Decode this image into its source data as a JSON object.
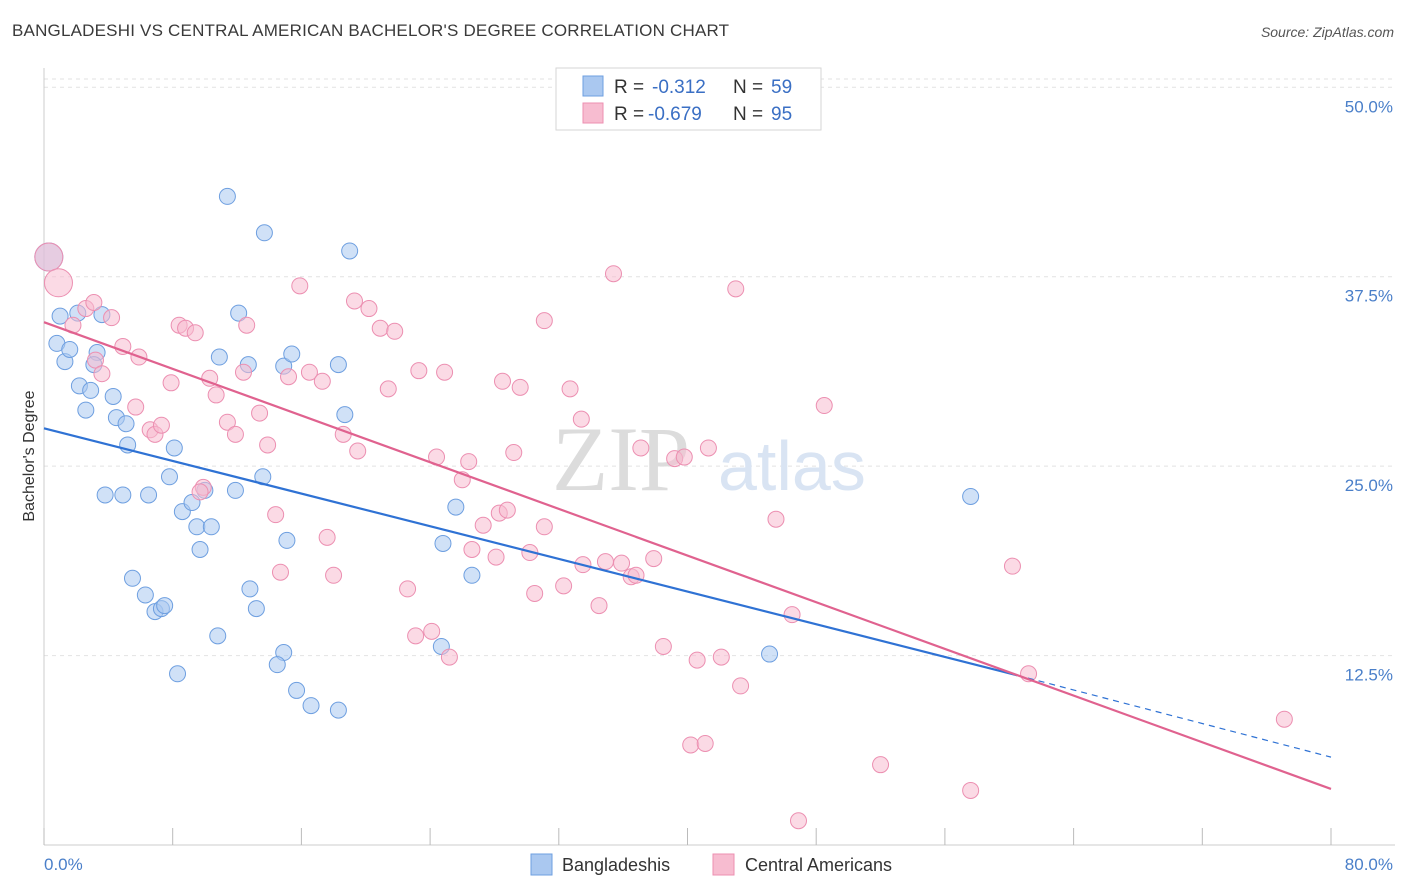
{
  "title": "BANGLADESHI VS CENTRAL AMERICAN BACHELOR'S DEGREE CORRELATION CHART",
  "source": "Source: ZipAtlas.com",
  "watermark": {
    "zip": "ZIP",
    "atlas": "atlas"
  },
  "legend": {
    "r_label": "R =",
    "n_label": "N =",
    "rows": [
      {
        "r": "-0.312",
        "n": "59",
        "color": "#aac8f0"
      },
      {
        "r": "-0.679",
        "n": "95",
        "color": "#f7bcd0"
      }
    ]
  },
  "bottom_legend": [
    {
      "label": "Bangladeshis",
      "color": "#aac8f0"
    },
    {
      "label": "Central Americans",
      "color": "#f7bcd0"
    }
  ],
  "chart_data": {
    "type": "scatter",
    "xlabel": "",
    "ylabel": "Bachelor's Degree",
    "xlim": [
      0,
      80
    ],
    "ylim": [
      0,
      52
    ],
    "x_tick_labels": [
      "0.0%",
      "80.0%"
    ],
    "y_ticks": [
      12.5,
      25.0,
      37.5,
      50.0
    ],
    "y_tick_labels": [
      "12.5%",
      "25.0%",
      "37.5%",
      "50.0%"
    ],
    "grid": "horizontal dashed",
    "legend_position": "top-center",
    "series": [
      {
        "name": "Bangladeshis",
        "color": "#6e9fe0",
        "fill": "#aac8f0",
        "trend": {
          "x0": 0,
          "y0": 27.5,
          "x1": 60.5,
          "y1": 11.2,
          "dash_to_x": 80,
          "dash_to_y": 5.8,
          "color": "#2f72d4"
        },
        "points": [
          [
            0.3,
            38.8
          ],
          [
            0.8,
            33.1
          ],
          [
            1.0,
            34.9
          ],
          [
            1.3,
            31.9
          ],
          [
            1.6,
            32.7
          ],
          [
            2.1,
            35.1
          ],
          [
            2.2,
            30.3
          ],
          [
            2.6,
            28.7
          ],
          [
            2.9,
            30.0
          ],
          [
            3.3,
            32.5
          ],
          [
            3.1,
            31.7
          ],
          [
            3.6,
            35.0
          ],
          [
            4.3,
            29.6
          ],
          [
            4.5,
            28.2
          ],
          [
            5.1,
            27.8
          ],
          [
            5.2,
            26.4
          ],
          [
            3.8,
            23.1
          ],
          [
            4.9,
            23.1
          ],
          [
            6.5,
            23.1
          ],
          [
            5.5,
            17.6
          ],
          [
            6.3,
            16.5
          ],
          [
            6.9,
            15.4
          ],
          [
            7.3,
            15.6
          ],
          [
            7.5,
            15.8
          ],
          [
            7.8,
            24.3
          ],
          [
            8.1,
            26.2
          ],
          [
            8.6,
            22.0
          ],
          [
            9.2,
            22.6
          ],
          [
            9.5,
            21.0
          ],
          [
            9.7,
            19.5
          ],
          [
            10.0,
            23.4
          ],
          [
            10.4,
            21.0
          ],
          [
            8.3,
            11.3
          ],
          [
            10.8,
            13.8
          ],
          [
            10.9,
            32.2
          ],
          [
            11.4,
            42.8
          ],
          [
            11.9,
            23.4
          ],
          [
            12.1,
            35.1
          ],
          [
            12.7,
            31.7
          ],
          [
            13.6,
            24.3
          ],
          [
            12.8,
            16.9
          ],
          [
            13.2,
            15.6
          ],
          [
            13.7,
            40.4
          ],
          [
            14.9,
            31.6
          ],
          [
            15.4,
            32.4
          ],
          [
            15.1,
            20.1
          ],
          [
            14.9,
            12.7
          ],
          [
            14.5,
            11.9
          ],
          [
            15.7,
            10.2
          ],
          [
            16.6,
            9.2
          ],
          [
            18.3,
            31.7
          ],
          [
            18.7,
            28.4
          ],
          [
            19.0,
            39.2
          ],
          [
            18.3,
            8.9
          ],
          [
            24.8,
            19.9
          ],
          [
            25.6,
            22.3
          ],
          [
            26.6,
            17.8
          ],
          [
            24.7,
            13.1
          ],
          [
            45.1,
            12.6
          ],
          [
            57.6,
            23.0
          ]
        ]
      },
      {
        "name": "Central Americans",
        "color": "#ec8fb1",
        "fill": "#f7bcd0",
        "trend": {
          "x0": 0,
          "y0": 34.5,
          "x1": 80,
          "y1": 3.7,
          "color": "#e0628f"
        },
        "points": [
          [
            0.3,
            38.8
          ],
          [
            0.9,
            37.1
          ],
          [
            1.8,
            34.3
          ],
          [
            2.6,
            35.4
          ],
          [
            3.1,
            35.8
          ],
          [
            3.2,
            32.0
          ],
          [
            3.6,
            31.1
          ],
          [
            4.2,
            34.8
          ],
          [
            4.9,
            32.9
          ],
          [
            5.7,
            28.9
          ],
          [
            5.9,
            32.2
          ],
          [
            6.6,
            27.4
          ],
          [
            6.9,
            27.1
          ],
          [
            7.3,
            27.7
          ],
          [
            7.9,
            30.5
          ],
          [
            8.4,
            34.3
          ],
          [
            8.8,
            34.1
          ],
          [
            9.4,
            33.8
          ],
          [
            9.9,
            23.6
          ],
          [
            9.7,
            23.3
          ],
          [
            10.3,
            30.8
          ],
          [
            10.7,
            29.7
          ],
          [
            11.4,
            27.9
          ],
          [
            11.9,
            27.1
          ],
          [
            12.4,
            31.2
          ],
          [
            12.6,
            34.3
          ],
          [
            13.4,
            28.5
          ],
          [
            13.9,
            26.4
          ],
          [
            14.4,
            21.8
          ],
          [
            14.7,
            18.0
          ],
          [
            15.2,
            30.9
          ],
          [
            15.9,
            36.9
          ],
          [
            16.5,
            31.2
          ],
          [
            17.3,
            30.6
          ],
          [
            17.6,
            20.3
          ],
          [
            18.0,
            17.8
          ],
          [
            18.6,
            27.1
          ],
          [
            19.3,
            35.9
          ],
          [
            19.5,
            26.0
          ],
          [
            20.2,
            35.4
          ],
          [
            20.9,
            34.1
          ],
          [
            21.4,
            30.1
          ],
          [
            21.8,
            33.9
          ],
          [
            22.6,
            16.9
          ],
          [
            23.1,
            13.8
          ],
          [
            23.3,
            31.3
          ],
          [
            24.1,
            14.1
          ],
          [
            24.4,
            25.6
          ],
          [
            24.9,
            31.2
          ],
          [
            25.2,
            12.4
          ],
          [
            26.0,
            24.1
          ],
          [
            26.4,
            25.3
          ],
          [
            26.6,
            19.5
          ],
          [
            27.3,
            21.1
          ],
          [
            28.1,
            19.0
          ],
          [
            28.3,
            21.9
          ],
          [
            28.8,
            22.1
          ],
          [
            28.5,
            30.6
          ],
          [
            29.6,
            30.2
          ],
          [
            29.2,
            25.9
          ],
          [
            30.2,
            19.3
          ],
          [
            30.5,
            16.6
          ],
          [
            31.1,
            34.6
          ],
          [
            31.1,
            21.0
          ],
          [
            32.3,
            17.1
          ],
          [
            32.7,
            30.1
          ],
          [
            33.4,
            28.1
          ],
          [
            33.5,
            18.5
          ],
          [
            34.5,
            15.8
          ],
          [
            34.9,
            18.7
          ],
          [
            35.4,
            37.7
          ],
          [
            35.9,
            18.6
          ],
          [
            36.5,
            17.7
          ],
          [
            36.8,
            17.8
          ],
          [
            37.1,
            26.2
          ],
          [
            37.9,
            18.9
          ],
          [
            38.5,
            13.1
          ],
          [
            39.2,
            25.5
          ],
          [
            39.8,
            25.6
          ],
          [
            40.2,
            6.6
          ],
          [
            40.6,
            12.2
          ],
          [
            41.1,
            6.7
          ],
          [
            41.3,
            26.2
          ],
          [
            42.1,
            12.4
          ],
          [
            43.0,
            36.7
          ],
          [
            43.3,
            10.5
          ],
          [
            45.5,
            21.5
          ],
          [
            46.5,
            15.2
          ],
          [
            46.9,
            1.6
          ],
          [
            48.5,
            29.0
          ],
          [
            52.0,
            5.3
          ],
          [
            57.6,
            3.6
          ],
          [
            60.2,
            18.4
          ],
          [
            61.2,
            11.3
          ],
          [
            77.1,
            8.3
          ]
        ]
      }
    ]
  }
}
